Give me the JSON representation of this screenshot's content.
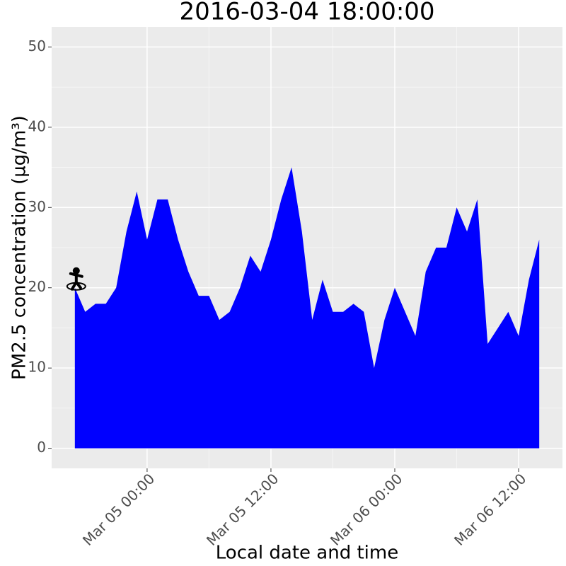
{
  "chart_data": {
    "type": "area",
    "title": "2016-03-04 18:00:00",
    "x_label": "Local date and time",
    "y_label": "PM2.5 concentration (µg/m³)",
    "color": "#0000ff",
    "grid": true,
    "x": [
      "Mar 04 17:00",
      "Mar 04 18:00",
      "Mar 04 19:00",
      "Mar 04 20:00",
      "Mar 04 21:00",
      "Mar 04 22:00",
      "Mar 04 23:00",
      "Mar 05 00:00",
      "Mar 05 01:00",
      "Mar 05 02:00",
      "Mar 05 03:00",
      "Mar 05 04:00",
      "Mar 05 05:00",
      "Mar 05 06:00",
      "Mar 05 07:00",
      "Mar 05 08:00",
      "Mar 05 09:00",
      "Mar 05 10:00",
      "Mar 05 11:00",
      "Mar 05 12:00",
      "Mar 05 13:00",
      "Mar 05 14:00",
      "Mar 05 15:00",
      "Mar 05 16:00",
      "Mar 05 17:00",
      "Mar 05 18:00",
      "Mar 05 19:00",
      "Mar 05 20:00",
      "Mar 05 21:00",
      "Mar 05 22:00",
      "Mar 05 23:00",
      "Mar 06 00:00",
      "Mar 06 01:00",
      "Mar 06 02:00",
      "Mar 06 03:00",
      "Mar 06 04:00",
      "Mar 06 05:00",
      "Mar 06 06:00",
      "Mar 06 07:00",
      "Mar 06 08:00",
      "Mar 06 09:00",
      "Mar 06 10:00",
      "Mar 06 11:00",
      "Mar 06 12:00",
      "Mar 06 13:00",
      "Mar 06 14:00"
    ],
    "values": [
      20,
      17,
      18,
      18,
      20,
      27,
      32,
      26,
      31,
      31,
      26,
      22,
      19,
      19,
      16,
      17,
      20,
      24,
      22,
      26,
      31,
      35,
      27,
      16,
      21,
      17,
      17,
      18,
      17,
      10,
      16,
      20,
      17,
      14,
      22,
      25,
      25,
      30,
      27,
      31,
      13,
      15,
      17,
      14,
      21,
      26
    ],
    "xlim": [
      "Mar 04 14:45",
      "Mar 06 16:15"
    ],
    "xticks": [
      "Mar 05 00:00",
      "Mar 05 12:00",
      "Mar 06 00:00",
      "Mar 06 12:00"
    ],
    "ylim": [
      -2.5,
      52.5
    ],
    "yticks": [
      0,
      10,
      20,
      30,
      40,
      50
    ]
  }
}
